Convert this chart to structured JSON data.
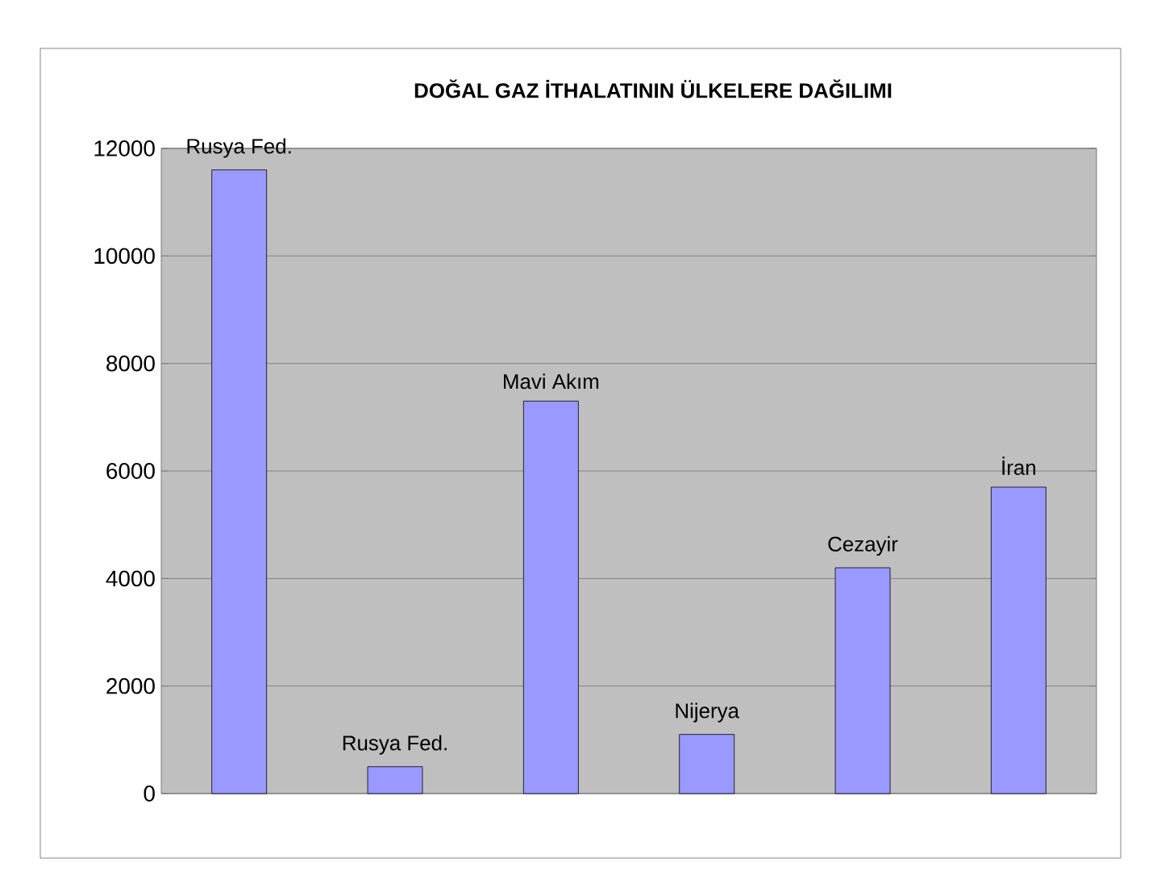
{
  "chart_data": {
    "type": "bar",
    "title": "DOĞAL GAZ İTHALATININ ÜLKELERE DAĞILIMI",
    "categories": [
      "Rusya Fed.",
      "Rusya Fed.",
      "Mavi Akım",
      "Nijerya",
      "Cezayir",
      "İran"
    ],
    "values": [
      11600,
      500,
      7300,
      1100,
      4200,
      5700
    ],
    "color": "#9999ff",
    "ylim": [
      0,
      12000
    ],
    "yticks": [
      0,
      2000,
      4000,
      6000,
      8000,
      10000,
      12000
    ],
    "grid": "y"
  }
}
